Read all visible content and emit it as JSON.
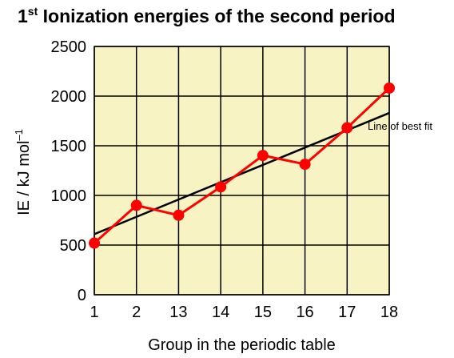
{
  "chart_data": {
    "type": "line",
    "title_main": "1",
    "title_sup": "st",
    "title_rest": " Ionization energies of the second period",
    "xlabel": "Group in the periodic table",
    "ylabel_main": "IE  / kJ mol",
    "ylabel_sup": "–1",
    "categories": [
      "1",
      "2",
      "13",
      "14",
      "15",
      "16",
      "17",
      "18"
    ],
    "yticks": [
      0,
      500,
      1000,
      1500,
      2000,
      2500
    ],
    "ylim": [
      0,
      2500
    ],
    "grid": true,
    "series": [
      {
        "values": [
          520,
          900,
          800,
          1086,
          1402,
          1314,
          1681,
          2081
        ],
        "color": "#ff0000"
      }
    ],
    "trendline": {
      "label": "Line of best fit",
      "start": 610,
      "end": 1830,
      "color": "#000000"
    },
    "colors": {
      "plot_background": "#f7f3c2",
      "grid": "#000000",
      "marker": "#ff0000",
      "line": "#ff0000"
    }
  }
}
